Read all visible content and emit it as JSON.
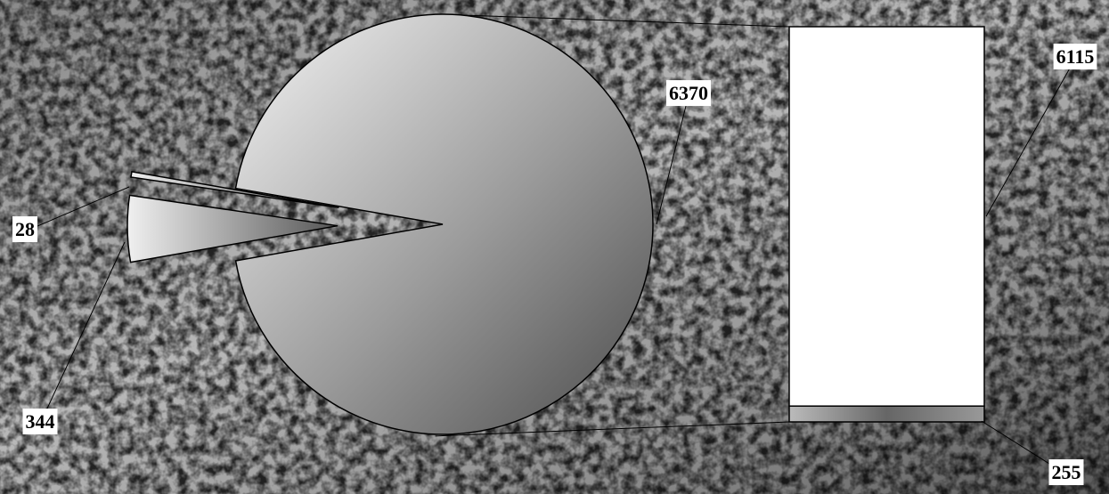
{
  "chart_data": {
    "type": "bar-of-pie",
    "values": [
      6370,
      344,
      28
    ],
    "breakdown": {
      "values": [
        6115,
        255
      ]
    }
  }
}
